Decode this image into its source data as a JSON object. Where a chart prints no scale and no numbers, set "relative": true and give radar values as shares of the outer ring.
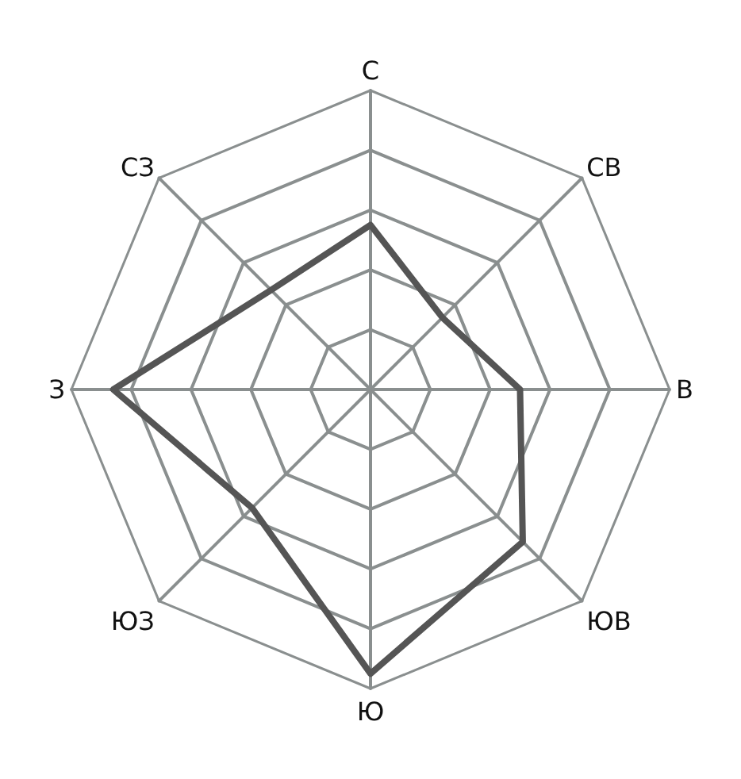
{
  "chart_data": {
    "type": "radar",
    "relative": true,
    "grid": true,
    "marker": "none",
    "line_style": "solid",
    "categories": [
      "С",
      "СВ",
      "В",
      "ЮВ",
      "Ю",
      "ЮЗ",
      "З",
      "СЗ"
    ],
    "series": [
      {
        "color": "#555555",
        "values": [
          0.55,
          0.34,
          0.5,
          0.72,
          0.95,
          0.56,
          0.86,
          0.47
        ]
      }
    ]
  }
}
